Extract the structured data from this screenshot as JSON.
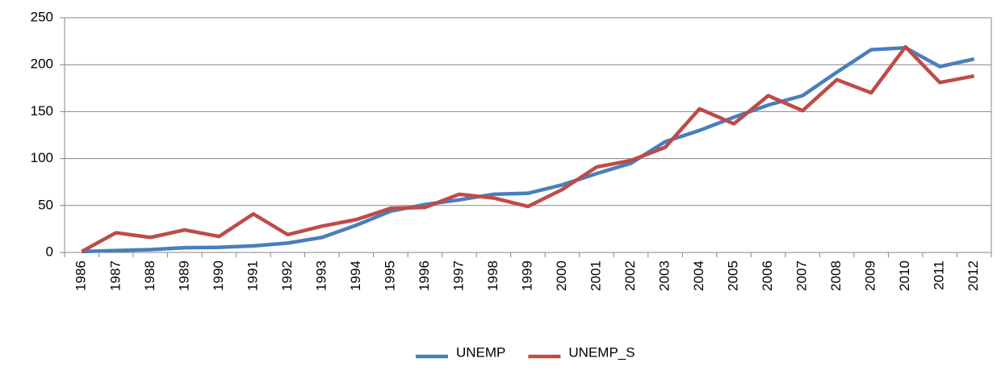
{
  "chart_data": {
    "type": "line",
    "categories": [
      "1986",
      "1987",
      "1988",
      "1989",
      "1990",
      "1991",
      "1992",
      "1993",
      "1994",
      "1995",
      "1996",
      "1997",
      "1998",
      "1999",
      "2000",
      "2001",
      "2002",
      "2003",
      "2004",
      "2005",
      "2006",
      "2007",
      "2008",
      "2009",
      "2010",
      "2011",
      "2012"
    ],
    "series": [
      {
        "name": "UNEMP",
        "color": "#4a7ebb",
        "values": [
          1,
          2,
          3,
          5,
          5.5,
          7,
          10,
          16,
          29,
          44,
          51,
          56,
          62,
          63,
          72,
          84,
          95,
          118,
          130,
          144,
          157,
          167,
          192,
          216,
          218,
          198,
          206
        ]
      },
      {
        "name": "UNEMP_S",
        "color": "#be4b48",
        "values": [
          1,
          21,
          16,
          24,
          17,
          41,
          19,
          28,
          35,
          47,
          48,
          62,
          58,
          49,
          67,
          91,
          98,
          112,
          153,
          137,
          167,
          151,
          184,
          170,
          219,
          181,
          188
        ]
      }
    ],
    "ylim": [
      0,
      250
    ],
    "yticks": [
      0,
      50,
      100,
      150,
      200,
      250
    ],
    "grid": true,
    "legend": "bottom"
  }
}
